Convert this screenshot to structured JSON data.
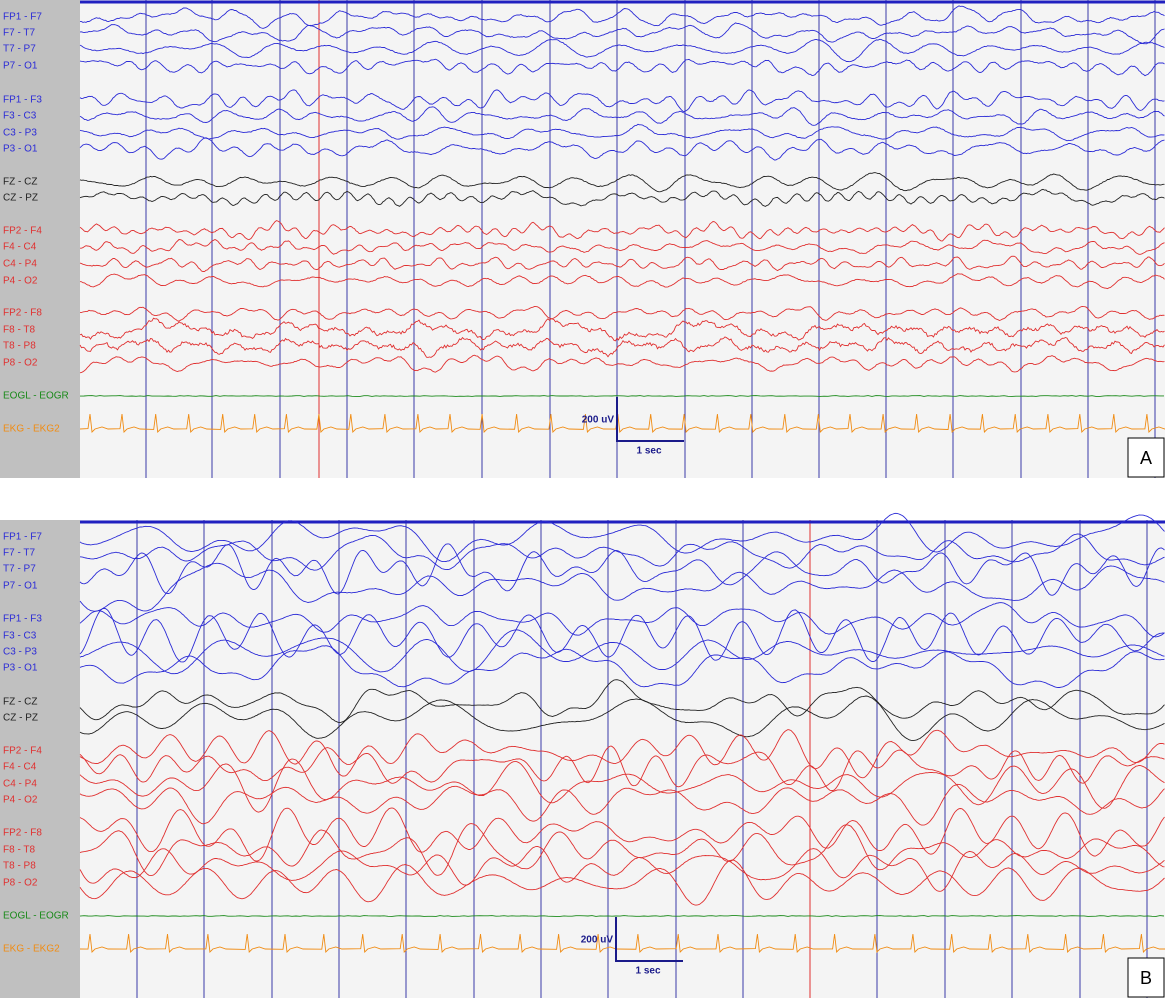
{
  "panels": [
    {
      "label": "A",
      "channels": [
        {
          "name": "FP1 - F7",
          "color": "#2b2bd6"
        },
        {
          "name": "F7 - T7",
          "color": "#2b2bd6"
        },
        {
          "name": "T7 - P7",
          "color": "#2b2bd6"
        },
        {
          "name": "P7 - O1",
          "color": "#2b2bd6"
        },
        {
          "name": "FP1 - F3",
          "color": "#2b2bd6"
        },
        {
          "name": "F3 - C3",
          "color": "#2b2bd6"
        },
        {
          "name": "C3 - P3",
          "color": "#2b2bd6"
        },
        {
          "name": "P3 - O1",
          "color": "#2b2bd6"
        },
        {
          "name": "FZ - CZ",
          "color": "#222222"
        },
        {
          "name": "CZ - PZ",
          "color": "#222222"
        },
        {
          "name": "FP2 - F4",
          "color": "#e03030"
        },
        {
          "name": "F4 - C4",
          "color": "#e03030"
        },
        {
          "name": "C4 - P4",
          "color": "#e03030"
        },
        {
          "name": "P4 - O2",
          "color": "#e03030"
        },
        {
          "name": "FP2 - F8",
          "color": "#e03030"
        },
        {
          "name": "F8 - T8",
          "color": "#e03030"
        },
        {
          "name": "T8 - P8",
          "color": "#e03030"
        },
        {
          "name": "P8 - O2",
          "color": "#e03030"
        },
        {
          "name": "EOGL - EOGR",
          "color": "#1a8a1a"
        },
        {
          "name": "EKG - EKG2",
          "color": "#f08c14"
        }
      ],
      "scale": {
        "amplitude": "200 uV",
        "time": "1 sec"
      }
    },
    {
      "label": "B",
      "channels": [
        {
          "name": "FP1 - F7",
          "color": "#2b2bd6"
        },
        {
          "name": "F7 - T7",
          "color": "#2b2bd6"
        },
        {
          "name": "T7 - P7",
          "color": "#2b2bd6"
        },
        {
          "name": "P7 - O1",
          "color": "#2b2bd6"
        },
        {
          "name": "FP1 - F3",
          "color": "#2b2bd6"
        },
        {
          "name": "F3 - C3",
          "color": "#2b2bd6"
        },
        {
          "name": "C3 - P3",
          "color": "#2b2bd6"
        },
        {
          "name": "P3 - O1",
          "color": "#2b2bd6"
        },
        {
          "name": "FZ - CZ",
          "color": "#222222"
        },
        {
          "name": "CZ - PZ",
          "color": "#222222"
        },
        {
          "name": "FP2 - F4",
          "color": "#e03030"
        },
        {
          "name": "F4 - C4",
          "color": "#e03030"
        },
        {
          "name": "C4 - P4",
          "color": "#e03030"
        },
        {
          "name": "P4 - O2",
          "color": "#e03030"
        },
        {
          "name": "FP2 - F8",
          "color": "#e03030"
        },
        {
          "name": "F8 - T8",
          "color": "#e03030"
        },
        {
          "name": "T8 - P8",
          "color": "#e03030"
        },
        {
          "name": "P8 - O2",
          "color": "#e03030"
        },
        {
          "name": "EOGL - EOGR",
          "color": "#1a8a1a"
        },
        {
          "name": "EKG - EKG2",
          "color": "#f08c14"
        }
      ],
      "scale": {
        "amplitude": "200 uV",
        "time": "1 sec"
      }
    }
  ]
}
